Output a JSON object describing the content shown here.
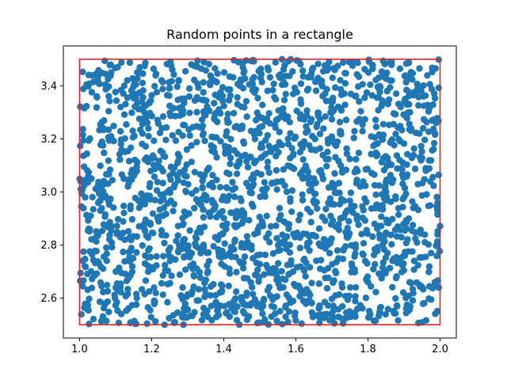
{
  "chart_data": {
    "type": "scatter",
    "title": "Random points in a rectangle",
    "xlabel": "",
    "ylabel": "",
    "xlim": [
      0.955,
      2.045
    ],
    "ylim": [
      2.45,
      3.55
    ],
    "x_ticks": [
      1.0,
      1.2,
      1.4,
      1.6,
      1.8,
      2.0
    ],
    "x_tick_labels": [
      "1.0",
      "1.2",
      "1.4",
      "1.6",
      "1.8",
      "2.0"
    ],
    "y_ticks": [
      2.6,
      2.8,
      3.0,
      3.2,
      3.4
    ],
    "y_tick_labels": [
      "2.6",
      "2.8",
      "3.0",
      "3.2",
      "3.4"
    ],
    "grid": false,
    "legend": "none",
    "colors": {
      "points": "#1f77b4",
      "rectangle": "#d62728",
      "axes": "#000000"
    },
    "rectangle": {
      "x": [
        1.0,
        2.0
      ],
      "y": [
        2.5,
        3.5
      ]
    },
    "points": {
      "count": 2000,
      "distribution": "uniform",
      "x_range": [
        1.0,
        2.0
      ],
      "y_range": [
        2.5,
        3.5
      ]
    }
  }
}
